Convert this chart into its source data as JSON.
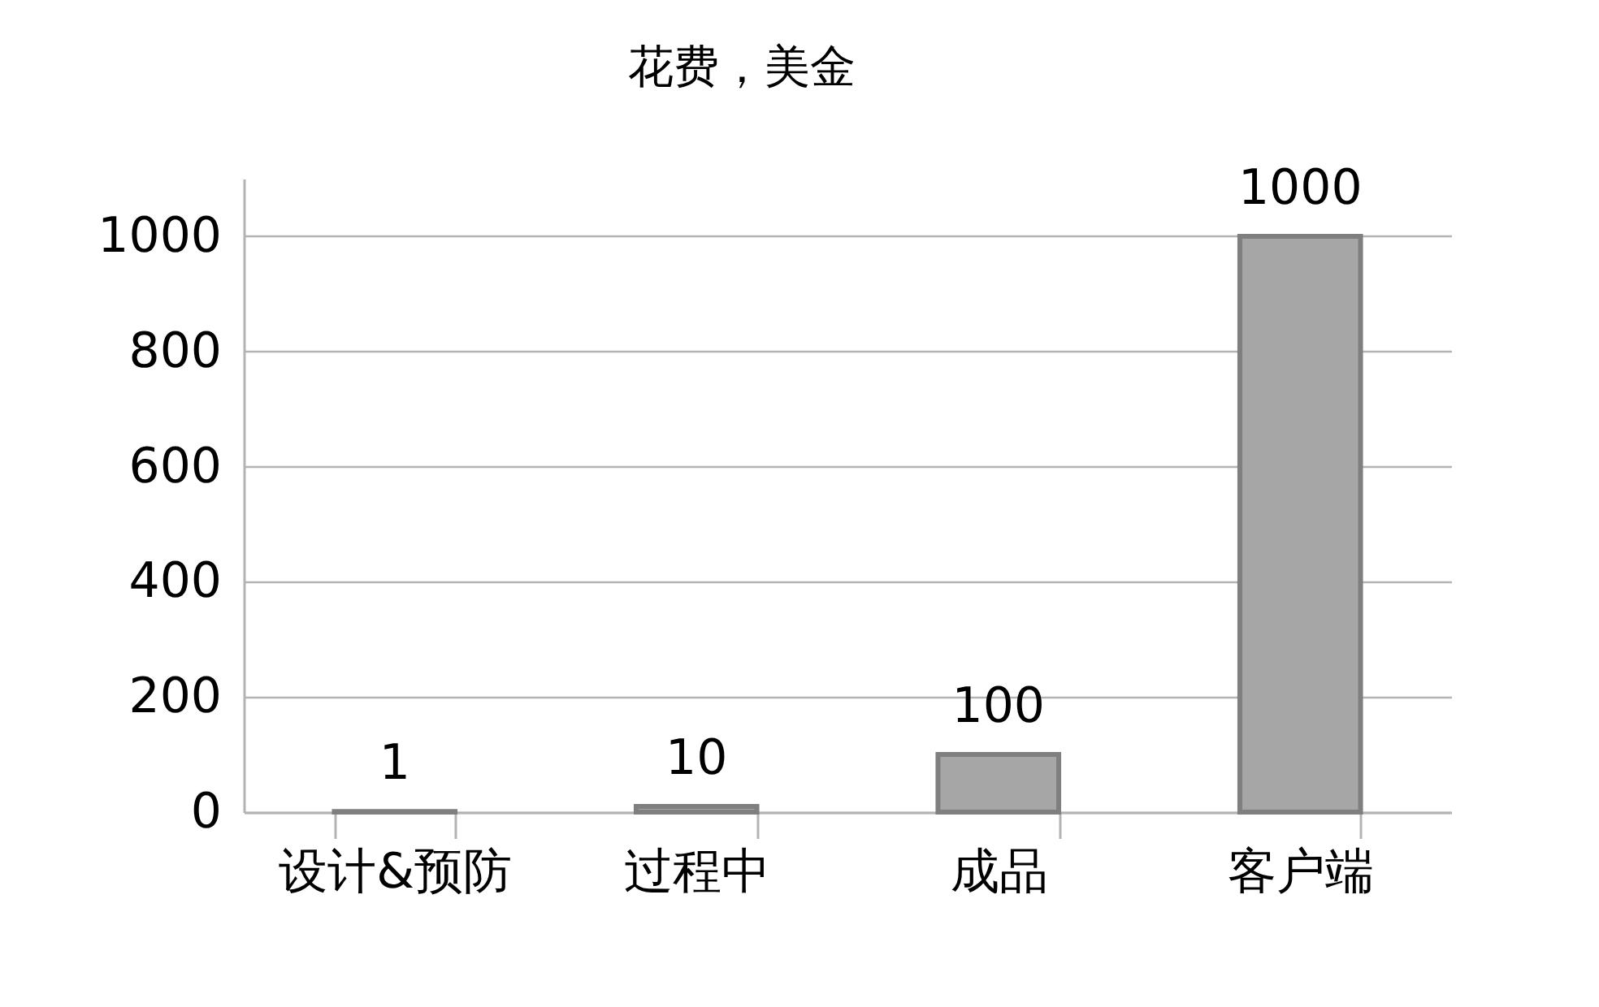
{
  "chart_data": {
    "type": "bar",
    "title": "花费，美金",
    "categories": [
      "设计&预防",
      "过程中",
      "成品",
      "客户端"
    ],
    "values": [
      1,
      10,
      100,
      1000
    ],
    "color": "#a6a6a6",
    "ylim": [
      0,
      1100
    ],
    "yticks": [
      0,
      200,
      400,
      600,
      800,
      1000
    ],
    "grid": "y",
    "data_labels": true
  }
}
